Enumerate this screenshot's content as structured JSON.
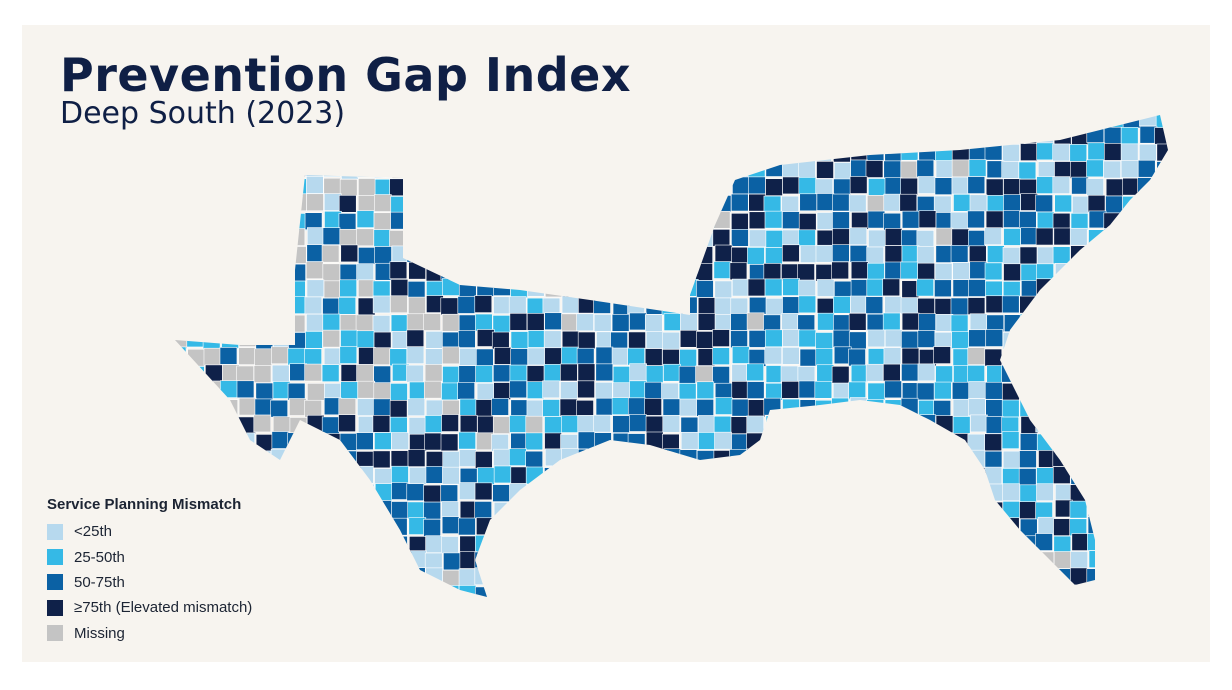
{
  "title": "Prevention Gap Index",
  "subtitle": "Deep South (2023)",
  "legend": {
    "title": "Service Planning Mismatch",
    "items": [
      {
        "label": "<25th",
        "color": "#b7d9ee"
      },
      {
        "label": "25-50th",
        "color": "#35b9e6"
      },
      {
        "label": "50-75th",
        "color": "#0b61a4"
      },
      {
        "label": "≥75th (Elevated mismatch)",
        "color": "#0f2149"
      },
      {
        "label": "Missing",
        "color": "#c4c4c4"
      }
    ]
  }
}
